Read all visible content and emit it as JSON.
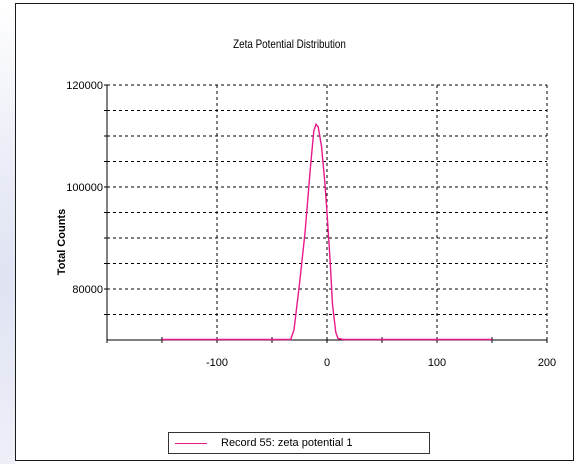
{
  "chart_data": {
    "type": "line",
    "title": "Zeta Potential Distribution",
    "xlabel": "",
    "ylabel": "Total Counts",
    "xlim": [
      -200,
      200
    ],
    "ylim": [
      70000,
      120000
    ],
    "x_ticks": [
      -100,
      0,
      100,
      200
    ],
    "x_tick_labels": [
      "-100",
      "0",
      "100",
      "200"
    ],
    "y_tick_labels": [
      {
        "value": 80000,
        "label": "80000"
      },
      {
        "value": 100000,
        "label": "100000"
      },
      {
        "value": 120000,
        "label": "120000"
      }
    ],
    "y_gridlines": [
      75000,
      80000,
      85000,
      90000,
      95000,
      100000,
      105000,
      110000,
      115000,
      120000
    ],
    "grid": true,
    "legend": "bottom",
    "series": [
      {
        "name": "Record 55: zeta potential 1",
        "color": "#e8198b",
        "x": [
          -150,
          -100,
          -50,
          -33,
          -30,
          -25,
          -20,
          -15,
          -12,
          -10,
          -8,
          -5,
          -2,
          0,
          3,
          5,
          8,
          10,
          15,
          50,
          100,
          150
        ],
        "y": [
          70100,
          70100,
          70100,
          70100,
          72000,
          81000,
          91000,
          104000,
          111000,
          112300,
          111800,
          108000,
          101000,
          95000,
          85000,
          77000,
          71500,
          70300,
          70100,
          70100,
          70100,
          70100
        ]
      }
    ]
  }
}
